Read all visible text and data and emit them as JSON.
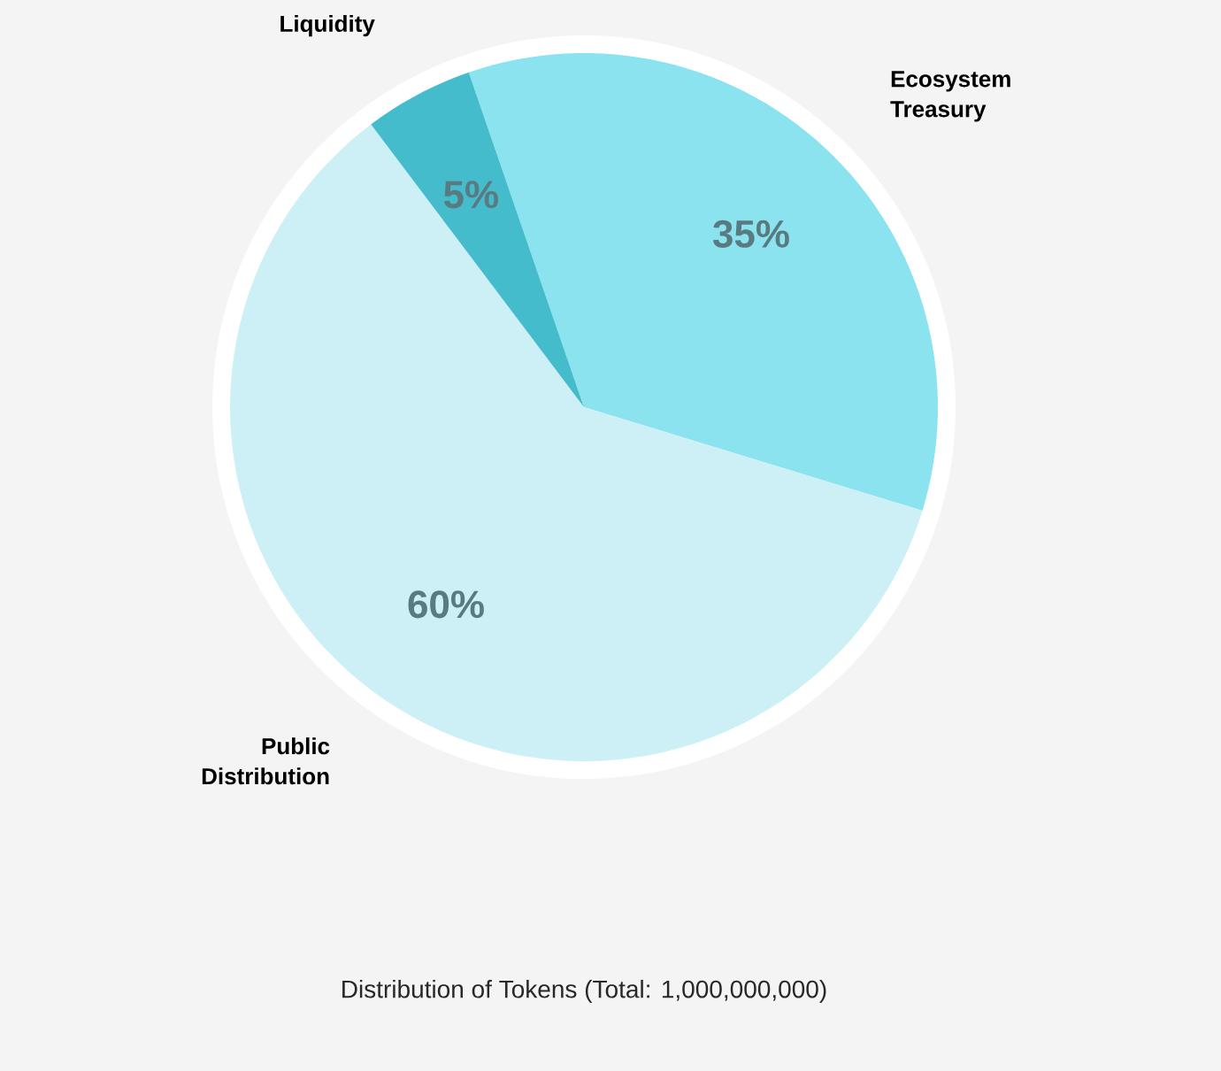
{
  "chart_data": {
    "type": "pie",
    "categories": [
      "Ecosystem Treasury",
      "Public Distribution",
      "Liquidity"
    ],
    "values": [
      35,
      60,
      5
    ],
    "value_labels": [
      "35%",
      "60%",
      "5%"
    ],
    "colors": [
      "#8ae3ee",
      "#ccf0f6",
      "#45bccc"
    ],
    "annotations": [
      "Distribution of Tokens (Total: 1,000,000,000)"
    ]
  }
}
